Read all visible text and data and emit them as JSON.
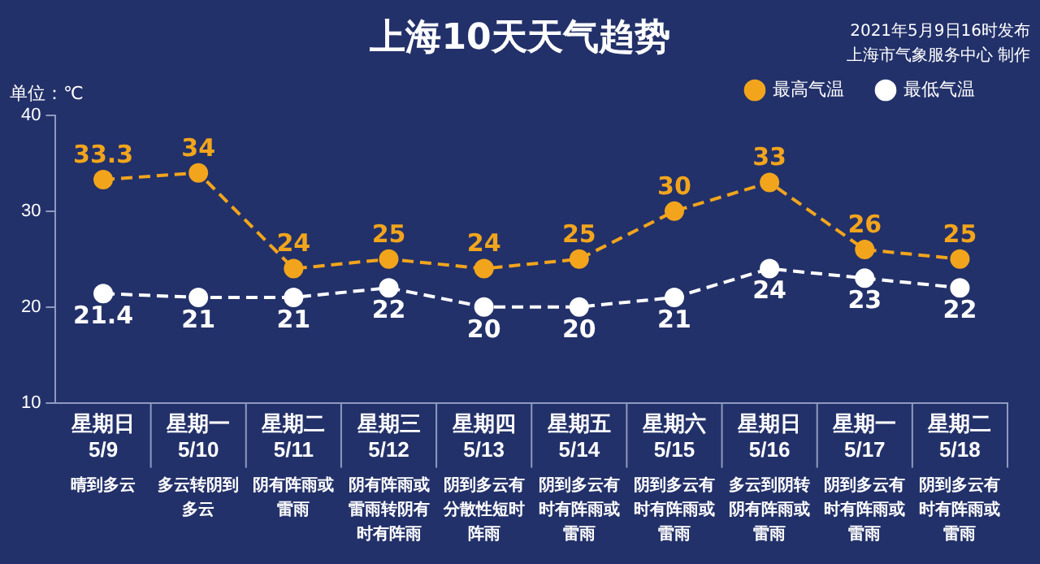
{
  "chart_data": {
    "type": "line",
    "title": "上海10天天气趋势",
    "ylabel": "单位：℃",
    "categories": [
      "星期日\n5/9",
      "星期一\n5/10",
      "星期二\n5/11",
      "星期三\n5/12",
      "星期四\n5/13",
      "星期五\n5/14",
      "星期六\n5/15",
      "星期日\n5/16",
      "星期一\n5/17",
      "星期二\n5/18"
    ],
    "series": [
      {
        "name": "最高气温",
        "color": "#f2a51c",
        "values": [
          33.3,
          34,
          24,
          25,
          24,
          25,
          30,
          33,
          26,
          25
        ]
      },
      {
        "name": "最低气温",
        "color": "#ffffff",
        "values": [
          21.4,
          21,
          21,
          22,
          20,
          20,
          21,
          24,
          23,
          22
        ]
      }
    ],
    "ylim": [
      10,
      40
    ],
    "yticks": [
      10,
      20,
      30,
      40
    ],
    "grid": false,
    "legend": "top right",
    "marker": "circle",
    "line_style": "dashed",
    "data_labels": true,
    "annotations": [
      "晴到多云",
      "多云转阴到多云",
      "阴有阵雨或雷雨",
      "阴有阵雨或雷雨转阴有时有阵雨",
      "阴到多云有分散性短时阵雨",
      "阴到多云有时有阵雨或雷雨",
      "阴到多云有时有阵雨或雷雨",
      "多云到阴转阴有阵雨或雷雨",
      "阴到多云有时有阵雨或雷雨",
      "阴到多云有时有阵雨或雷雨",
      "2021年5月9日16时发布",
      "上海市气象服务中心 制作"
    ]
  }
}
